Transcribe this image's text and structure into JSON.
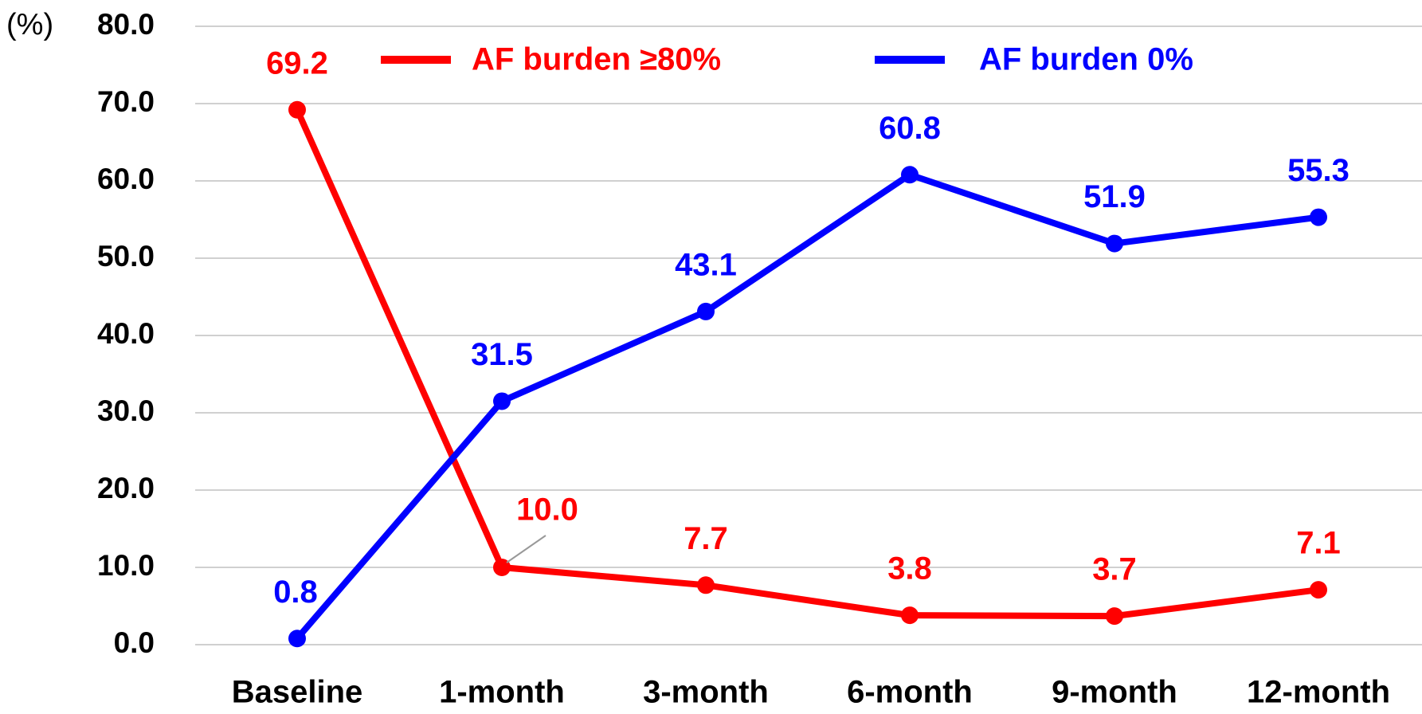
{
  "chart_data": {
    "type": "line",
    "y_unit_label": "(%)",
    "categories": [
      "Baseline",
      "1-month",
      "3-month",
      "6-month",
      "9-month",
      "12-month"
    ],
    "series": [
      {
        "name": "AF burden ≥80%",
        "color": "#ff0000",
        "values": [
          69.2,
          10.0,
          7.7,
          3.8,
          3.7,
          7.1
        ],
        "value_labels": [
          "69.2",
          "10.0",
          "7.7",
          "3.8",
          "3.7",
          "7.1"
        ]
      },
      {
        "name": "AF burden 0%",
        "color": "#0000ff",
        "values": [
          0.8,
          31.5,
          43.1,
          60.8,
          51.9,
          55.3
        ],
        "value_labels": [
          "0.8",
          "31.5",
          "43.1",
          "60.8",
          "51.9",
          "55.3"
        ]
      }
    ],
    "ylim": [
      0,
      80
    ],
    "yticks": [
      {
        "value": 0,
        "label": "0.0"
      },
      {
        "value": 10,
        "label": "10.0"
      },
      {
        "value": 20,
        "label": "20.0"
      },
      {
        "value": 30,
        "label": "30.0"
      },
      {
        "value": 40,
        "label": "40.0"
      },
      {
        "value": 50,
        "label": "50.0"
      },
      {
        "value": 60,
        "label": "60.0"
      },
      {
        "value": 70,
        "label": "70.0"
      },
      {
        "value": 80,
        "label": "80.0"
      }
    ],
    "grid": true
  }
}
